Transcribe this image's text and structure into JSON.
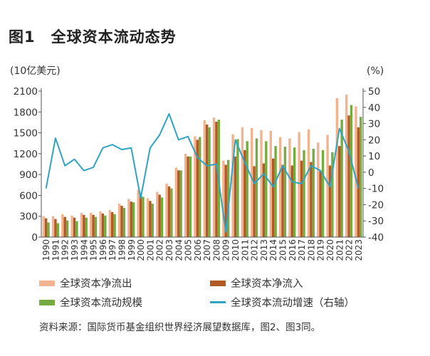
{
  "figure": {
    "label": "图1",
    "title": "全球资本流动态势",
    "source": "资料来源：国际货币基金组织世界经济展望数据库，图2、图3同。"
  },
  "chart_data": {
    "type": "bar",
    "y_left_unit": "(10亿美元)",
    "y_right_unit": "(%)",
    "ylim_left": [
      0,
      2100
    ],
    "ylim_right": [
      -40,
      50
    ],
    "y_left_ticks": [
      0,
      300,
      600,
      900,
      1200,
      1500,
      1800,
      2100
    ],
    "y_right_ticks": [
      -40,
      -30,
      -20,
      -10,
      0,
      10,
      20,
      30,
      40,
      50
    ],
    "categories": [
      "1990",
      "1991",
      "1992",
      "1993",
      "1994",
      "1995",
      "1996",
      "1997",
      "1998",
      "1999",
      "2000",
      "2001",
      "2002",
      "2003",
      "2004",
      "2005",
      "2006",
      "2007",
      "2008",
      "2009",
      "2010",
      "2011",
      "2012",
      "2013",
      "2014",
      "2015",
      "2016",
      "2017",
      "2018",
      "2019",
      "2020",
      "2021",
      "2022",
      "2023"
    ],
    "series": [
      {
        "name": "全球资本净流出",
        "kind": "bar",
        "axis": "left",
        "color": "#f2b48f",
        "values": [
          300,
          300,
          330,
          310,
          350,
          350,
          370,
          390,
          480,
          550,
          680,
          560,
          650,
          770,
          1000,
          1200,
          1450,
          1680,
          1720,
          1100,
          1480,
          1580,
          1570,
          1540,
          1530,
          1440,
          1420,
          1510,
          1550,
          1360,
          1470,
          2000,
          2050,
          1880
        ]
      },
      {
        "name": "全球资本净流入",
        "kind": "bar",
        "axis": "left",
        "color": "#b25a26",
        "values": [
          270,
          260,
          290,
          280,
          320,
          320,
          340,
          360,
          450,
          510,
          630,
          520,
          610,
          730,
          960,
          1160,
          1400,
          1620,
          1660,
          1040,
          1160,
          1250,
          1020,
          1060,
          1130,
          1040,
          1030,
          1100,
          1080,
          950,
          1030,
          1310,
          1750,
          1580
        ]
      },
      {
        "name": "全球资本流动规模",
        "kind": "bar",
        "axis": "left",
        "color": "#76ac3f",
        "values": [
          210,
          200,
          240,
          230,
          280,
          290,
          310,
          330,
          420,
          500,
          580,
          480,
          570,
          700,
          960,
          1160,
          1440,
          1580,
          1690,
          1110,
          1410,
          1380,
          1420,
          1380,
          1310,
          1300,
          1290,
          1250,
          1270,
          1250,
          1220,
          1690,
          1900,
          1730
        ]
      },
      {
        "name": "全球资本流动增速（右轴）",
        "kind": "line",
        "axis": "right",
        "color": "#2ea3c4",
        "values": [
          -10,
          21,
          4,
          8,
          1,
          3,
          15,
          17,
          14,
          15,
          -16,
          15,
          23,
          36,
          20,
          22,
          9,
          4,
          5,
          -37,
          20,
          6,
          -7,
          -1,
          -9,
          4,
          -6,
          -7,
          4,
          1,
          -9,
          27,
          13,
          -10
        ]
      }
    ]
  }
}
